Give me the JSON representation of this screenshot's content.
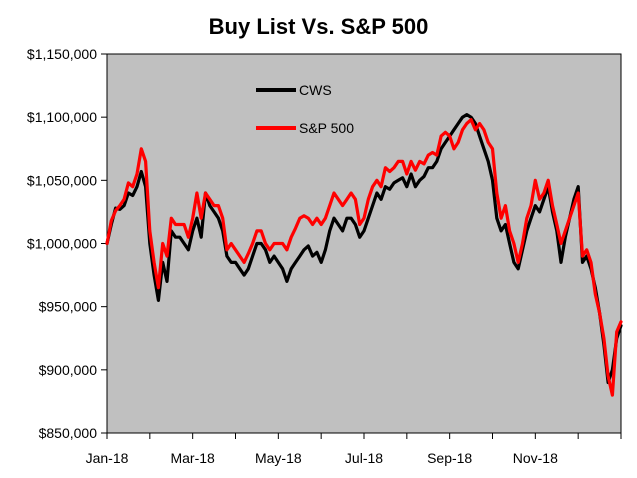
{
  "chart_data": {
    "type": "line",
    "title": "Buy List Vs. S&P 500",
    "xlabel": "",
    "ylabel": "",
    "ylim": [
      850000,
      1150000
    ],
    "y_tick_labels": [
      "$850,000",
      "$900,000",
      "$950,000",
      "$1,000,000",
      "$1,050,000",
      "$1,100,000",
      "$1,150,000"
    ],
    "y_tick_values": [
      850000,
      900000,
      950000,
      1000000,
      1050000,
      1100000,
      1150000
    ],
    "x_tick_labels": [
      "Jan-18",
      "Mar-18",
      "May-18",
      "Jul-18",
      "Sep-18",
      "Nov-18"
    ],
    "x_tick_positions": [
      0,
      2,
      4,
      6,
      8,
      10
    ],
    "x_range": [
      0,
      12
    ],
    "grid": false,
    "plot_background": "#c0c0c0",
    "legend_position": "top-left inside plot",
    "series": [
      {
        "name": "CWS",
        "color": "#000000",
        "x": [
          0.0,
          0.1,
          0.2,
          0.3,
          0.4,
          0.5,
          0.6,
          0.7,
          0.8,
          0.9,
          1.0,
          1.1,
          1.2,
          1.3,
          1.4,
          1.5,
          1.6,
          1.7,
          1.8,
          1.9,
          2.0,
          2.1,
          2.2,
          2.3,
          2.4,
          2.5,
          2.6,
          2.7,
          2.8,
          2.9,
          3.0,
          3.1,
          3.2,
          3.3,
          3.4,
          3.5,
          3.6,
          3.7,
          3.8,
          3.9,
          4.0,
          4.1,
          4.2,
          4.3,
          4.4,
          4.5,
          4.6,
          4.7,
          4.8,
          4.9,
          5.0,
          5.1,
          5.2,
          5.3,
          5.4,
          5.5,
          5.6,
          5.7,
          5.8,
          5.9,
          6.0,
          6.1,
          6.2,
          6.3,
          6.4,
          6.5,
          6.6,
          6.7,
          6.8,
          6.9,
          7.0,
          7.1,
          7.2,
          7.3,
          7.4,
          7.5,
          7.6,
          7.7,
          7.8,
          7.9,
          8.0,
          8.1,
          8.2,
          8.3,
          8.4,
          8.5,
          8.6,
          8.7,
          8.8,
          8.9,
          9.0,
          9.1,
          9.2,
          9.3,
          9.4,
          9.5,
          9.6,
          9.7,
          9.8,
          9.9,
          10.0,
          10.1,
          10.2,
          10.3,
          10.4,
          10.5,
          10.6,
          10.7,
          10.8,
          10.9,
          11.0,
          11.1,
          11.2,
          11.3,
          11.4,
          11.5,
          11.6,
          11.7,
          11.8,
          11.9,
          12.0
        ],
        "values": [
          1000000,
          1015000,
          1028000,
          1027000,
          1030000,
          1040000,
          1038000,
          1045000,
          1057000,
          1045000,
          1000000,
          975000,
          955000,
          985000,
          970000,
          1010000,
          1005000,
          1005000,
          1000000,
          995000,
          1010000,
          1020000,
          1005000,
          1040000,
          1030000,
          1025000,
          1020000,
          1010000,
          990000,
          985000,
          985000,
          980000,
          975000,
          980000,
          990000,
          1000000,
          1000000,
          995000,
          985000,
          990000,
          985000,
          980000,
          970000,
          980000,
          985000,
          990000,
          995000,
          998000,
          990000,
          993000,
          985000,
          995000,
          1010000,
          1020000,
          1015000,
          1010000,
          1020000,
          1020000,
          1015000,
          1005000,
          1010000,
          1020000,
          1030000,
          1040000,
          1035000,
          1045000,
          1043000,
          1048000,
          1050000,
          1052000,
          1045000,
          1055000,
          1045000,
          1050000,
          1053000,
          1060000,
          1060000,
          1065000,
          1075000,
          1080000,
          1085000,
          1090000,
          1095000,
          1100000,
          1102000,
          1100000,
          1095000,
          1085000,
          1075000,
          1065000,
          1050000,
          1020000,
          1010000,
          1015000,
          1000000,
          985000,
          980000,
          995000,
          1010000,
          1020000,
          1030000,
          1025000,
          1035000,
          1045000,
          1025000,
          1010000,
          985000,
          1005000,
          1020000,
          1035000,
          1045000,
          985000,
          990000,
          980000,
          965000,
          945000,
          920000,
          890000,
          900000,
          925000,
          935000
        ]
      },
      {
        "name": "S&P 500",
        "color": "#ff0000",
        "x": [
          0.0,
          0.1,
          0.2,
          0.3,
          0.4,
          0.5,
          0.6,
          0.7,
          0.8,
          0.9,
          1.0,
          1.1,
          1.2,
          1.3,
          1.4,
          1.5,
          1.6,
          1.7,
          1.8,
          1.9,
          2.0,
          2.1,
          2.2,
          2.3,
          2.4,
          2.5,
          2.6,
          2.7,
          2.8,
          2.9,
          3.0,
          3.1,
          3.2,
          3.3,
          3.4,
          3.5,
          3.6,
          3.7,
          3.8,
          3.9,
          4.0,
          4.1,
          4.2,
          4.3,
          4.4,
          4.5,
          4.6,
          4.7,
          4.8,
          4.9,
          5.0,
          5.1,
          5.2,
          5.3,
          5.4,
          5.5,
          5.6,
          5.7,
          5.8,
          5.9,
          6.0,
          6.1,
          6.2,
          6.3,
          6.4,
          6.5,
          6.6,
          6.7,
          6.8,
          6.9,
          7.0,
          7.1,
          7.2,
          7.3,
          7.4,
          7.5,
          7.6,
          7.7,
          7.8,
          7.9,
          8.0,
          8.1,
          8.2,
          8.3,
          8.4,
          8.5,
          8.6,
          8.7,
          8.8,
          8.9,
          9.0,
          9.1,
          9.2,
          9.3,
          9.4,
          9.5,
          9.6,
          9.7,
          9.8,
          9.9,
          10.0,
          10.1,
          10.2,
          10.3,
          10.4,
          10.5,
          10.6,
          10.7,
          10.8,
          10.9,
          11.0,
          11.1,
          11.2,
          11.3,
          11.4,
          11.5,
          11.6,
          11.7,
          11.8,
          11.9,
          12.0
        ],
        "values": [
          1000000,
          1018000,
          1026000,
          1030000,
          1035000,
          1048000,
          1045000,
          1055000,
          1075000,
          1065000,
          1010000,
          985000,
          965000,
          1000000,
          990000,
          1020000,
          1015000,
          1015000,
          1015000,
          1005000,
          1020000,
          1040000,
          1020000,
          1040000,
          1035000,
          1030000,
          1030000,
          1020000,
          995000,
          1000000,
          995000,
          990000,
          985000,
          992000,
          1000000,
          1010000,
          1010000,
          1000000,
          995000,
          1000000,
          1000000,
          1000000,
          995000,
          1005000,
          1012000,
          1020000,
          1022000,
          1020000,
          1015000,
          1020000,
          1015000,
          1020000,
          1030000,
          1040000,
          1035000,
          1030000,
          1035000,
          1040000,
          1035000,
          1015000,
          1020000,
          1035000,
          1045000,
          1050000,
          1045000,
          1060000,
          1057000,
          1060000,
          1065000,
          1065000,
          1055000,
          1065000,
          1058000,
          1065000,
          1063000,
          1070000,
          1072000,
          1070000,
          1085000,
          1088000,
          1085000,
          1075000,
          1080000,
          1090000,
          1095000,
          1098000,
          1090000,
          1095000,
          1090000,
          1080000,
          1075000,
          1040000,
          1020000,
          1030000,
          1010000,
          1000000,
          985000,
          1000000,
          1020000,
          1030000,
          1050000,
          1035000,
          1040000,
          1050000,
          1030000,
          1015000,
          1000000,
          1010000,
          1020000,
          1030000,
          1040000,
          990000,
          995000,
          985000,
          960000,
          945000,
          925000,
          895000,
          880000,
          930000,
          938000
        ]
      }
    ]
  }
}
